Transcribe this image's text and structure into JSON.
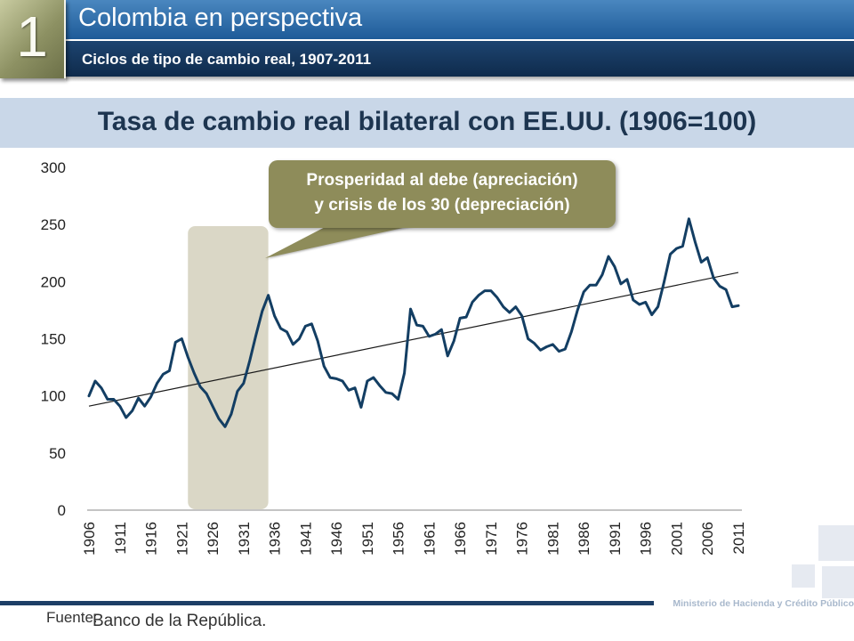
{
  "header": {
    "section_number": "1",
    "title": "Colombia en perspectiva",
    "subtitle": "Ciclos de tipo de cambio real, 1907-2011"
  },
  "footer": {
    "source_label": "Fuente:",
    "source_value": "Banco de la República.",
    "ministry": "Ministerio de Hacienda y Crédito Público"
  },
  "colors": {
    "series": "#133e63",
    "trend": "#1a1a1a",
    "highlight_band": "#dad7c6",
    "callout": "#8e8c5a",
    "callout_text": "#ffffff"
  },
  "chart_data": {
    "type": "line",
    "title": "Tasa de cambio real bilateral con EE.UU. (1906=100)",
    "xlabel": "",
    "ylabel": "",
    "ylim": [
      0,
      300
    ],
    "xlim": [
      1906,
      2011
    ],
    "y_ticks": [
      "0",
      "50",
      "100",
      "150",
      "200",
      "250",
      "300"
    ],
    "x_ticks": [
      "1906",
      "1911",
      "1916",
      "1921",
      "1926",
      "1931",
      "1936",
      "1941",
      "1946",
      "1951",
      "1956",
      "1961",
      "1966",
      "1971",
      "1976",
      "1981",
      "1986",
      "1991",
      "1996",
      "2001",
      "2006",
      "2011"
    ],
    "grid": false,
    "series": [
      {
        "name": "",
        "x": [
          1906,
          1907,
          1908,
          1909,
          1910,
          1911,
          1912,
          1913,
          1914,
          1915,
          1916,
          1917,
          1918,
          1919,
          1920,
          1921,
          1922,
          1923,
          1924,
          1925,
          1926,
          1927,
          1928,
          1929,
          1930,
          1931,
          1932,
          1933,
          1934,
          1935,
          1936,
          1937,
          1938,
          1939,
          1940,
          1941,
          1942,
          1943,
          1944,
          1945,
          1946,
          1947,
          1948,
          1949,
          1950,
          1951,
          1952,
          1953,
          1954,
          1955,
          1956,
          1957,
          1958,
          1959,
          1960,
          1961,
          1962,
          1963,
          1964,
          1965,
          1966,
          1967,
          1968,
          1969,
          1970,
          1971,
          1972,
          1973,
          1974,
          1975,
          1976,
          1977,
          1978,
          1979,
          1980,
          1981,
          1982,
          1983,
          1984,
          1985,
          1986,
          1987,
          1988,
          1989,
          1990,
          1991,
          1992,
          1993,
          1994,
          1995,
          1996,
          1997,
          1998,
          1999,
          2000,
          2001,
          2002,
          2003,
          2004,
          2005,
          2006,
          2007,
          2008,
          2009,
          2010,
          2011
        ],
        "values": [
          100,
          113,
          107,
          97,
          97,
          91,
          81,
          87,
          98,
          91,
          99,
          111,
          119,
          122,
          147,
          150,
          134,
          120,
          108,
          102,
          91,
          80,
          73,
          84,
          104,
          111,
          131,
          153,
          174,
          188,
          170,
          159,
          156,
          145,
          150,
          161,
          163,
          148,
          126,
          116,
          115,
          113,
          105,
          107,
          90,
          113,
          116,
          109,
          103,
          102,
          97,
          120,
          176,
          162,
          161,
          152,
          154,
          158,
          135,
          148,
          168,
          169,
          182,
          188,
          192,
          192,
          186,
          178,
          173,
          178,
          170,
          150,
          146,
          140,
          143,
          145,
          139,
          141,
          156,
          175,
          191,
          197,
          197,
          206,
          222,
          213,
          198,
          202,
          184,
          180,
          182,
          171,
          178,
          200,
          224,
          229,
          231,
          255,
          235,
          217,
          221,
          203,
          196,
          193,
          178,
          179
        ]
      }
    ],
    "trend": {
      "x": [
        1906,
        2011
      ],
      "values": [
        91,
        208
      ]
    },
    "highlight": {
      "x_start": 1922,
      "x_end": 1935
    },
    "annotations": [
      {
        "lines": [
          "Prosperidad al debe (apreciación)",
          "y crisis de los 30 (depreciación)"
        ]
      }
    ]
  }
}
